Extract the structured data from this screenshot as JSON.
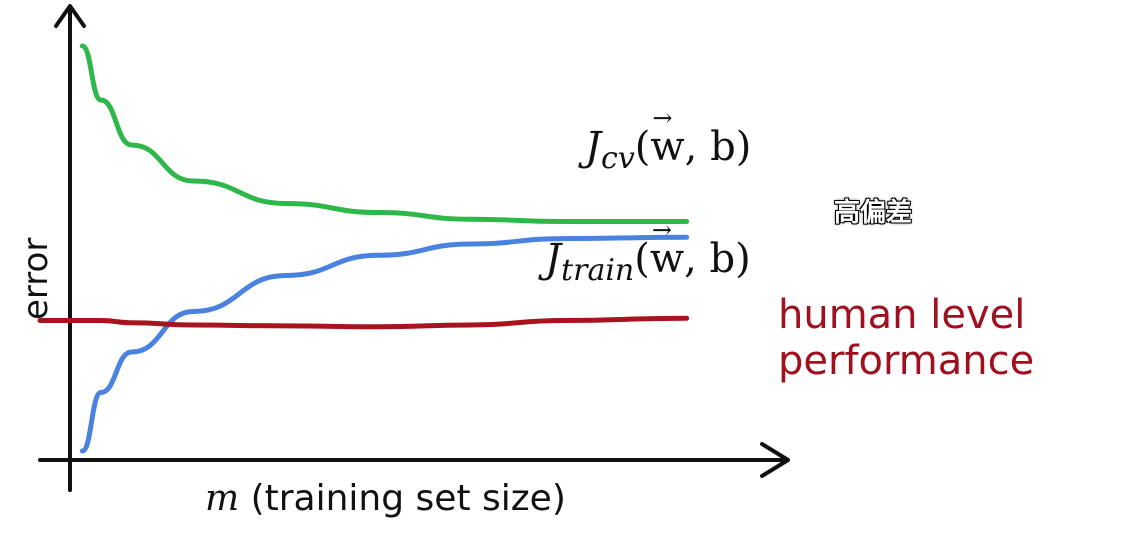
{
  "chart_data": {
    "type": "line",
    "ylabel": "error",
    "xlabel_var": "m",
    "xlabel_text": "(training set size)",
    "x": [
      0.02,
      0.05,
      0.1,
      0.2,
      0.35,
      0.5,
      0.65,
      0.8,
      1.0
    ],
    "series": [
      {
        "name_main": "J",
        "name_sub": "cv",
        "name_args": "w",
        "name_tail": ", b)",
        "color": "#2fb84a",
        "values": [
          0.92,
          0.8,
          0.7,
          0.62,
          0.57,
          0.55,
          0.535,
          0.53,
          0.53
        ]
      },
      {
        "name_main": "J",
        "name_sub": "train",
        "name_args": "w",
        "name_tail": ", b)",
        "color": "#4a82e0",
        "values": [
          0.02,
          0.15,
          0.24,
          0.33,
          0.41,
          0.455,
          0.48,
          0.492,
          0.495
        ]
      },
      {
        "name_line1": "human level",
        "name_line2": "performance",
        "color": "#a8141e",
        "values": [
          0.31,
          0.31,
          0.305,
          0.3,
          0.298,
          0.296,
          0.3,
          0.31,
          0.315
        ]
      }
    ],
    "xlim": [
      0,
      1.2
    ],
    "ylim": [
      0,
      1.0
    ],
    "grid": false
  },
  "caption": "高偏差"
}
